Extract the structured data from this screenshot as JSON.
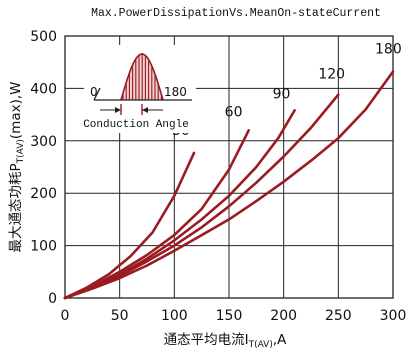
{
  "chart_data": {
    "type": "line",
    "title": "Max.PowerDissipationVs.MeanOn-stateCurrent",
    "xlabel": "通态平均电流I_T(AV),A",
    "xlabel_main": "通态平均电流I",
    "xlabel_sub": "T(AV)",
    "xlabel_tail": ",A",
    "ylabel_main": "最大通态功耗P",
    "ylabel_sub": "T(AV)",
    "ylabel_tail": "(max),W",
    "xlim": [
      0,
      300
    ],
    "ylim": [
      0,
      500
    ],
    "xticks": [
      "0",
      "50",
      "100",
      "150",
      "200",
      "250",
      "300"
    ],
    "yticks": [
      "0",
      "100",
      "200",
      "300",
      "400",
      "500"
    ],
    "grid": true,
    "line_color": "#9b1b22",
    "series": [
      {
        "name": "30",
        "x": [
          0,
          20,
          40,
          60,
          80,
          100,
          118
        ],
        "y": [
          0,
          20,
          45,
          80,
          125,
          195,
          277
        ]
      },
      {
        "name": "60",
        "x": [
          0,
          25,
          50,
          75,
          100,
          125,
          150,
          168
        ],
        "y": [
          0,
          22,
          50,
          82,
          120,
          170,
          245,
          320
        ]
      },
      {
        "name": "90",
        "x": [
          0,
          25,
          50,
          75,
          100,
          125,
          150,
          175,
          195,
          210
        ],
        "y": [
          0,
          20,
          45,
          75,
          110,
          150,
          195,
          250,
          305,
          358
        ]
      },
      {
        "name": "120",
        "x": [
          0,
          25,
          50,
          75,
          100,
          125,
          150,
          175,
          200,
          225,
          250
        ],
        "y": [
          0,
          20,
          42,
          70,
          100,
          135,
          175,
          220,
          270,
          325,
          388
        ]
      },
      {
        "name": "180",
        "x": [
          0,
          25,
          50,
          75,
          100,
          125,
          150,
          175,
          200,
          225,
          250,
          275,
          300
        ],
        "y": [
          0,
          18,
          38,
          62,
          90,
          120,
          150,
          185,
          222,
          262,
          305,
          360,
          432
        ]
      }
    ],
    "inset": {
      "label_left": "0",
      "label_right": "180",
      "caption": "Conduction Angle"
    }
  }
}
